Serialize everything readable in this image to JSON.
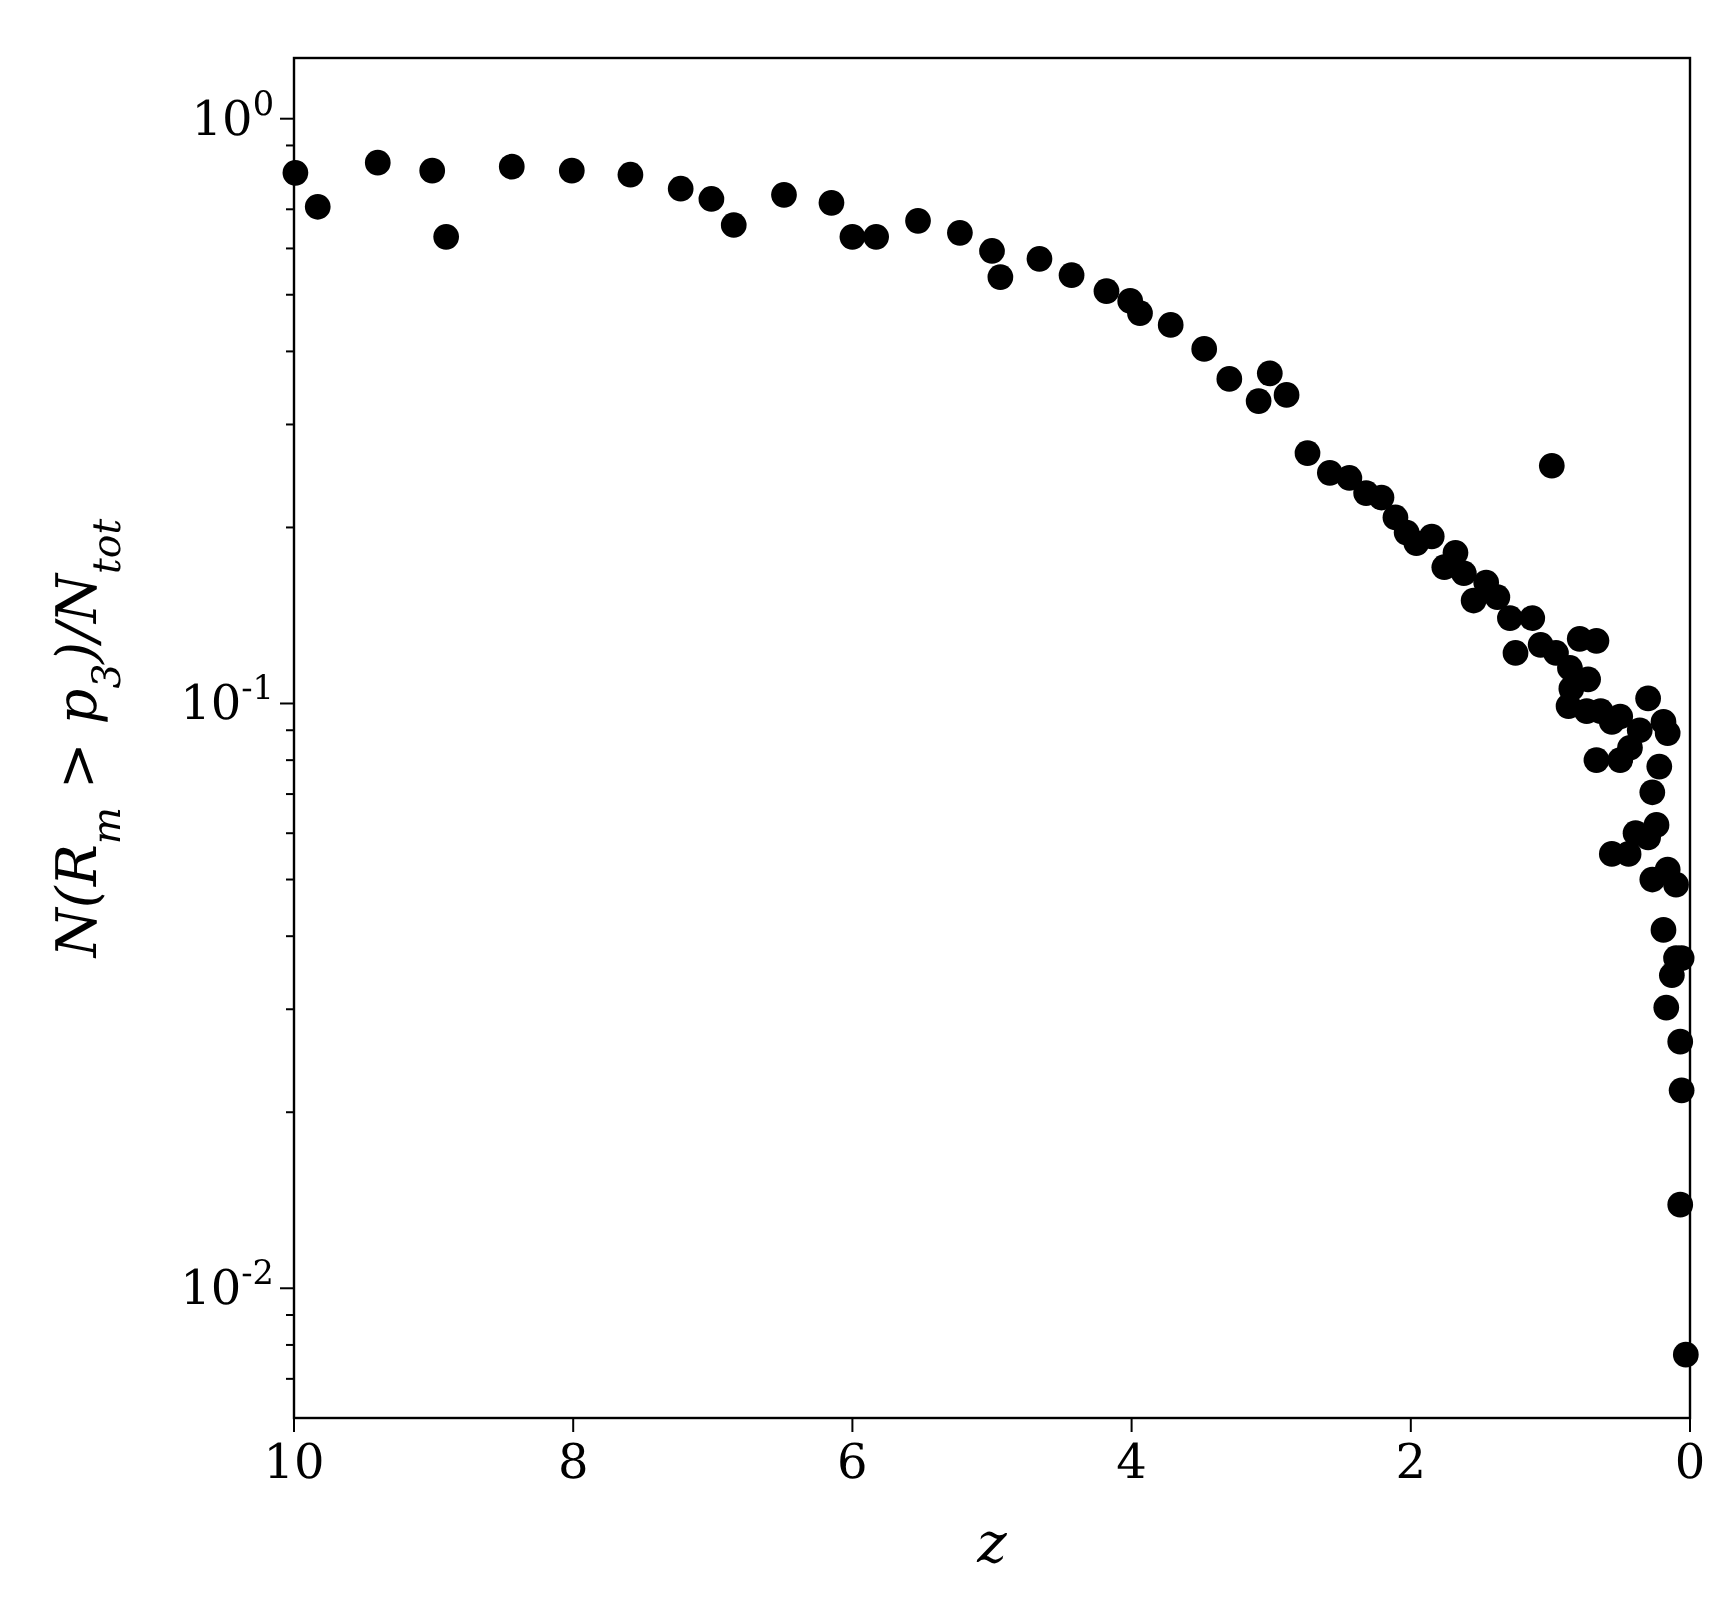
{
  "chart_data": {
    "type": "scatter",
    "xlabel": "z",
    "ylabel": "N(R$_{m}$ > p$_{3}$)/N$_{tot}$",
    "log": "y",
    "marker": "circle",
    "grid": false,
    "xlim": [
      10,
      0
    ],
    "xticks": [
      10,
      8,
      6,
      4,
      2,
      0
    ],
    "ylim": [
      0.006,
      1.27
    ],
    "yticks": [
      {
        "value": 0.007,
        "label": null
      },
      {
        "value": 0.008,
        "label": null
      },
      {
        "value": 0.009,
        "label": null
      },
      {
        "value": 0.01,
        "label": "10$^{-2}$"
      },
      {
        "value": 0.02,
        "label": null
      },
      {
        "value": 0.03,
        "label": null
      },
      {
        "value": 0.04,
        "label": null
      },
      {
        "value": 0.05,
        "label": null
      },
      {
        "value": 0.06,
        "label": null
      },
      {
        "value": 0.07,
        "label": null
      },
      {
        "value": 0.08,
        "label": null
      },
      {
        "value": 0.09,
        "label": null
      },
      {
        "value": 0.1,
        "label": "10$^{-1}$"
      },
      {
        "value": 0.2,
        "label": null
      },
      {
        "value": 0.3,
        "label": null
      },
      {
        "value": 0.4,
        "label": null
      },
      {
        "value": 0.5,
        "label": null
      },
      {
        "value": 0.6,
        "label": null
      },
      {
        "value": 0.7,
        "label": null
      },
      {
        "value": 0.8,
        "label": null
      },
      {
        "value": 0.9,
        "label": null
      },
      {
        "value": 1,
        "label": "10$^{0}$"
      }
    ],
    "series": [
      {
        "color": "#000000",
        "x": [
          9.99,
          9.83,
          9.4,
          9.01,
          8.91,
          8.44,
          8.01,
          7.59,
          7.23,
          7.01,
          6.85,
          6.49,
          6.15,
          6.0,
          5.83,
          5.53,
          5.23,
          5.0,
          4.94,
          4.66,
          4.43,
          4.18,
          4.01,
          3.94,
          3.72,
          3.48,
          3.3,
          3.09,
          3.01,
          2.89,
          2.74,
          2.58,
          2.44,
          2.32,
          2.21,
          2.11,
          2.03,
          1.96,
          1.85,
          1.76,
          1.68,
          1.62,
          1.55,
          1.46,
          1.38,
          1.29,
          1.25,
          1.13,
          1.07,
          0.99,
          0.96,
          0.86,
          0.79,
          0.67,
          0.85,
          0.73,
          0.87,
          0.74,
          0.64,
          0.67,
          0.56,
          0.5,
          0.36,
          0.3,
          0.19,
          0.16,
          0.22,
          0.27,
          0.43,
          0.5,
          0.56,
          0.44,
          0.39,
          0.3,
          0.24,
          0.27,
          0.16,
          0.1,
          0.19,
          0.1,
          0.13,
          0.06,
          0.17,
          0.07,
          0.06,
          0.07,
          0.03
        ],
        "values": [
          0.808,
          0.707,
          0.841,
          0.815,
          0.628,
          0.828,
          0.815,
          0.802,
          0.759,
          0.729,
          0.658,
          0.741,
          0.718,
          0.628,
          0.628,
          0.669,
          0.638,
          0.594,
          0.536,
          0.576,
          0.54,
          0.507,
          0.488,
          0.465,
          0.444,
          0.404,
          0.359,
          0.329,
          0.367,
          0.337,
          0.268,
          0.248,
          0.243,
          0.229,
          0.225,
          0.208,
          0.196,
          0.188,
          0.193,
          0.171,
          0.181,
          0.167,
          0.15,
          0.161,
          0.152,
          0.14,
          0.122,
          0.14,
          0.126,
          0.255,
          0.122,
          0.115,
          0.129,
          0.128,
          0.106,
          0.11,
          0.099,
          0.097,
          0.097,
          0.08,
          0.093,
          0.095,
          0.09,
          0.102,
          0.093,
          0.089,
          0.078,
          0.0705,
          0.084,
          0.08,
          0.0553,
          0.0553,
          0.06,
          0.059,
          0.062,
          0.05,
          0.052,
          0.049,
          0.041,
          0.0367,
          0.0343,
          0.0367,
          0.0302,
          0.0264,
          0.0218,
          0.0139,
          0.0077
        ]
      }
    ]
  }
}
